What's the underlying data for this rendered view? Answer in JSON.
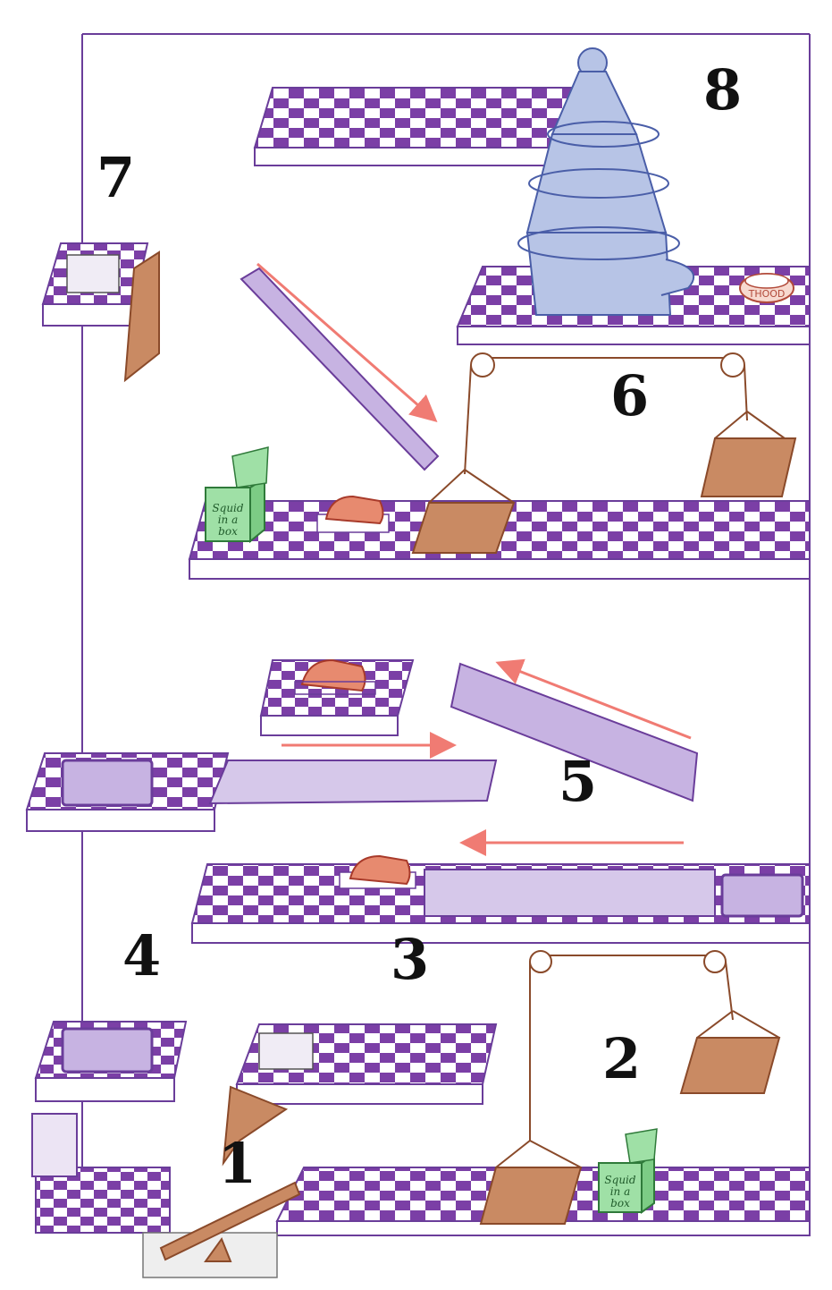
{
  "level_numbers": [
    "1",
    "2",
    "3",
    "4",
    "5",
    "6",
    "7",
    "8"
  ],
  "squid_box": {
    "line1": "Squid",
    "line2": "in a",
    "line3": "box"
  },
  "bowl_label": "THOOD",
  "colors": {
    "outline": "#6a3d9a",
    "checker_dark": "#7b3fa6",
    "checker_light": "#ffffff",
    "ramp": "#c7b3e2",
    "wood": "#c98a63",
    "arrow": "#f07b73",
    "tower": "#a9b8dd",
    "meat": "#e78a6f",
    "squid_box": "#9fe0a6"
  },
  "icons": [
    "pulley-icon",
    "counterweight-icon",
    "crate-icon",
    "squid-box-icon",
    "meat-steak-icon",
    "pet-bowl-icon",
    "tower-spiral-icon",
    "seesaw-icon",
    "door-icon",
    "direction-arrow-icon"
  ]
}
